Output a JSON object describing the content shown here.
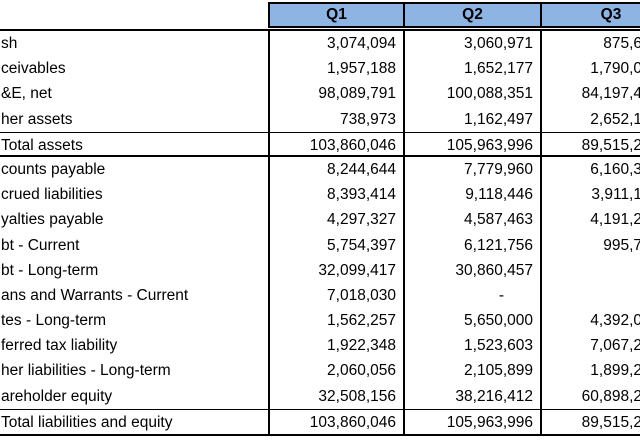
{
  "table": {
    "header_bg": "#8db4e2",
    "columns": [
      {
        "label": "Q1"
      },
      {
        "label": "Q2"
      },
      {
        "label": "Q3"
      }
    ],
    "rows": [
      {
        "label": "sh",
        "q1": "3,074,094",
        "q2": "3,060,971",
        "q3": "875,6"
      },
      {
        "label": "ceivables",
        "q1": "1,957,188",
        "q2": "1,652,177",
        "q3": "1,790,0"
      },
      {
        "label": "&E, net",
        "q1": "98,089,791",
        "q2": "100,088,351",
        "q3": "84,197,4"
      },
      {
        "label": "her assets",
        "q1": "738,973",
        "q2": "1,162,497",
        "q3": "2,652,1"
      },
      {
        "label": "Total assets",
        "q1": "103,860,046",
        "q2": "105,963,996",
        "q3": "89,515,2"
      },
      {
        "label": "counts payable",
        "q1": "8,244,644",
        "q2": "7,779,960",
        "q3": "6,160,3"
      },
      {
        "label": "crued liabilities",
        "q1": "8,393,414",
        "q2": "9,118,446",
        "q3": "3,911,1"
      },
      {
        "label": "yalties payable",
        "q1": "4,297,327",
        "q2": "4,587,463",
        "q3": "4,191,2"
      },
      {
        "label": "bt - Current",
        "q1": "5,754,397",
        "q2": "6,121,756",
        "q3": "995,7"
      },
      {
        "label": "bt - Long-term",
        "q1": "32,099,417",
        "q2": "30,860,457",
        "q3": ""
      },
      {
        "label": "ans and Warrants - Current",
        "q1": "7,018,030",
        "q2": "-",
        "q3": ""
      },
      {
        "label": "tes - Long-term",
        "q1": "1,562,257",
        "q2": "5,650,000",
        "q3": "4,392,0"
      },
      {
        "label": "ferred tax liability",
        "q1": "1,922,348",
        "q2": "1,523,603",
        "q3": "7,067,2"
      },
      {
        "label": "her liabilities - Long-term",
        "q1": "2,060,056",
        "q2": "2,105,899",
        "q3": "1,899,2"
      },
      {
        "label": "areholder equity",
        "q1": "32,508,156",
        "q2": "38,216,412",
        "q3": "60,898,2"
      },
      {
        "label": "Total liabilities and equity",
        "q1": "103,860,046",
        "q2": "105,963,996",
        "q3": "89,515,2"
      }
    ],
    "total_row_indices": [
      4,
      15
    ]
  }
}
